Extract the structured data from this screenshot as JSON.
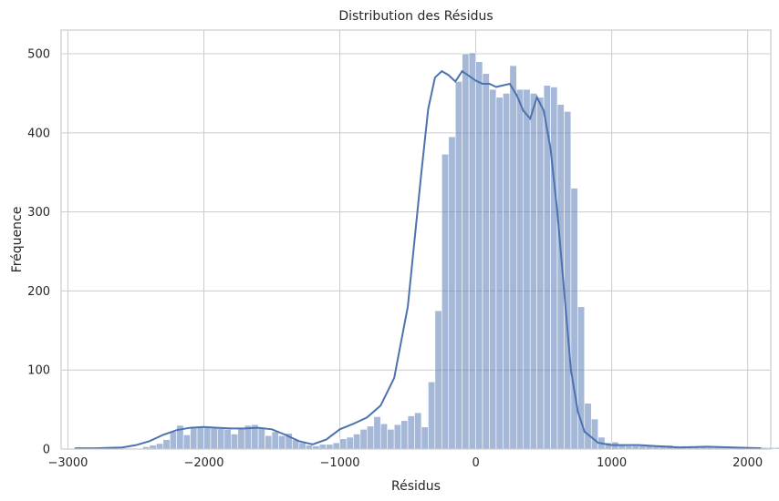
{
  "chart_data": {
    "type": "histogram",
    "title": "Distribution des Résidus",
    "xlabel": "Résidus",
    "ylabel": "Fréquence",
    "xlim": [
      -3050,
      2170
    ],
    "ylim": [
      0,
      530
    ],
    "xticks": [
      -3000,
      -2000,
      -1000,
      0,
      1000,
      2000
    ],
    "xtick_labels": [
      "−3000",
      "−2000",
      "−1000",
      "0",
      "1000",
      "2000"
    ],
    "yticks": [
      0,
      100,
      200,
      300,
      400,
      500
    ],
    "ytick_labels": [
      "0",
      "100",
      "200",
      "300",
      "400",
      "500"
    ],
    "grid": true,
    "series": [
      {
        "bins": {
          "start": -2950,
          "width": 50,
          "counts": [
            1,
            1,
            1,
            1,
            1,
            1,
            1,
            1,
            1,
            1,
            3,
            5,
            7,
            12,
            22,
            30,
            18,
            27,
            28,
            27,
            27,
            26,
            25,
            19,
            27,
            30,
            31,
            27,
            17,
            22,
            17,
            20,
            12,
            8,
            5,
            4,
            6,
            6,
            8,
            13,
            15,
            19,
            25,
            29,
            41,
            32,
            25,
            31,
            36,
            42,
            46,
            28,
            85,
            175,
            373,
            395,
            465,
            500,
            501,
            490,
            475,
            455,
            445,
            450,
            485,
            455,
            455,
            450,
            445,
            460,
            458,
            436,
            427,
            330,
            180,
            58,
            38,
            15,
            8,
            9,
            5,
            4,
            4,
            4,
            5,
            5,
            5,
            5,
            4,
            4,
            4,
            3,
            3,
            2,
            2,
            2,
            2,
            2,
            2,
            2,
            2,
            2,
            2,
            2,
            1,
            1
          ]
        },
        "kde": {
          "x": [
            -2950,
            -2800,
            -2600,
            -2500,
            -2400,
            -2300,
            -2200,
            -2100,
            -2000,
            -1900,
            -1800,
            -1700,
            -1600,
            -1500,
            -1400,
            -1300,
            -1200,
            -1100,
            -1000,
            -900,
            -800,
            -700,
            -600,
            -500,
            -450,
            -400,
            -350,
            -300,
            -250,
            -200,
            -150,
            -100,
            -50,
            0,
            50,
            100,
            150,
            200,
            250,
            300,
            350,
            400,
            450,
            500,
            550,
            600,
            650,
            700,
            750,
            800,
            900,
            1000,
            1100,
            1200,
            1300,
            1400,
            1500,
            1700,
            1900,
            2100
          ],
          "y": [
            1,
            1,
            2,
            5,
            10,
            18,
            24,
            27,
            28,
            27,
            26,
            26,
            27,
            25,
            18,
            10,
            6,
            12,
            25,
            32,
            40,
            55,
            90,
            180,
            265,
            350,
            430,
            470,
            478,
            473,
            465,
            478,
            472,
            466,
            462,
            462,
            458,
            460,
            462,
            448,
            428,
            418,
            445,
            428,
            380,
            300,
            200,
            100,
            48,
            22,
            8,
            5,
            5,
            5,
            4,
            3,
            2,
            3,
            2,
            1
          ]
        }
      }
    ]
  }
}
